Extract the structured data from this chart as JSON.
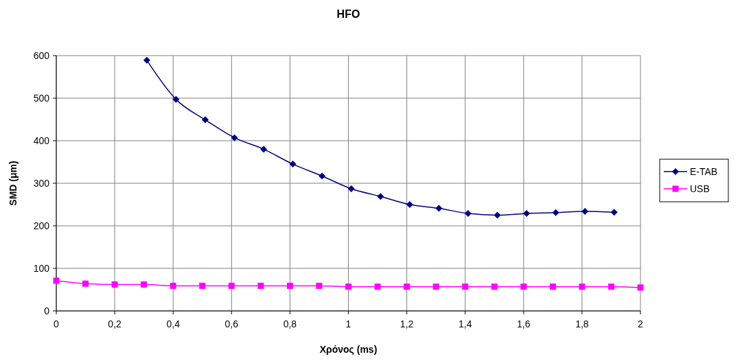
{
  "chart_data": {
    "type": "line",
    "title": "HFO",
    "xlabel": "Χρόνος (ms)",
    "ylabel": "SMD (μm)",
    "xlim": [
      0,
      2
    ],
    "xticks": [
      0,
      {
        "value": 0.2,
        "label": "0,2"
      },
      {
        "value": 0.4,
        "label": "0,4"
      },
      {
        "value": 0.6,
        "label": "0,6"
      },
      {
        "value": 0.8,
        "label": "0,8"
      },
      1,
      {
        "value": 1.2,
        "label": "1,2"
      },
      {
        "value": 1.4,
        "label": "1,4"
      },
      {
        "value": 1.6,
        "label": "1,6"
      },
      {
        "value": 1.8,
        "label": "1,8"
      },
      2
    ],
    "ylim": [
      0,
      600
    ],
    "yticks": [
      0,
      100,
      200,
      300,
      400,
      500,
      600
    ],
    "grid": true,
    "legend": "right",
    "series": [
      {
        "name": "E-TAB",
        "color": "#000080",
        "marker": "diamond",
        "x": [
          0.31,
          0.41,
          0.51,
          0.61,
          0.71,
          0.81,
          0.91,
          1.01,
          1.11,
          1.21,
          1.31,
          1.41,
          1.51,
          1.61,
          1.71,
          1.81,
          1.91
        ],
        "values": [
          589,
          497,
          449,
          407,
          380,
          345,
          317,
          287,
          269,
          250,
          241,
          229,
          225,
          229,
          231,
          234,
          232
        ]
      },
      {
        "name": "USB",
        "color": "#ff00ff",
        "marker": "square",
        "x": [
          0,
          0.1,
          0.2,
          0.3,
          0.4,
          0.5,
          0.6,
          0.7,
          0.8,
          0.9,
          1,
          1.1,
          1.2,
          1.3,
          1.4,
          1.5,
          1.6,
          1.7,
          1.8,
          1.9,
          2
        ],
        "values": [
          71,
          64,
          62,
          62,
          59,
          59,
          59,
          59,
          59,
          59,
          57,
          57,
          57,
          57,
          57,
          57,
          57,
          57,
          57,
          57,
          55
        ]
      }
    ]
  }
}
